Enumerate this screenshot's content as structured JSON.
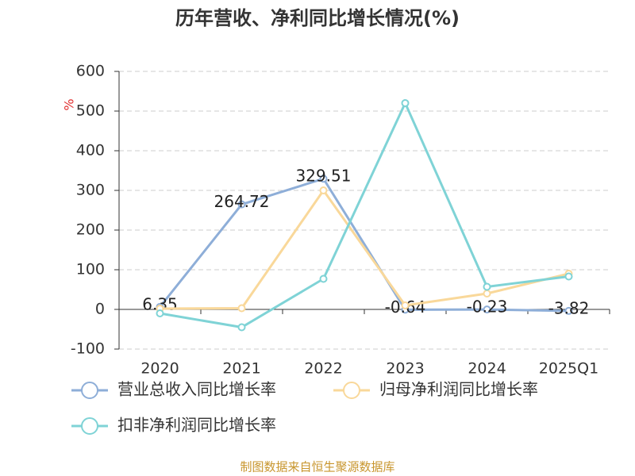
{
  "chart_data": {
    "type": "line",
    "title": "历年营收、净利同比增长情况(%)",
    "y_label": "%",
    "categories": [
      "2020",
      "2021",
      "2022",
      "2023",
      "2024",
      "2025Q1"
    ],
    "series": [
      {
        "name": "营业总收入同比增长率",
        "color": "#8eaed8",
        "values": [
          6.35,
          264.72,
          329.51,
          -0.64,
          -0.23,
          -3.82
        ],
        "show_labels": true
      },
      {
        "name": "归母净利润同比增长率",
        "color": "#f9d89a",
        "values": [
          2,
          3,
          300,
          10,
          40,
          90
        ],
        "show_labels": false
      },
      {
        "name": "扣非净利润同比增长率",
        "color": "#7fd3d6",
        "values": [
          -10,
          -45,
          77,
          520,
          57,
          83
        ],
        "show_labels": false
      }
    ],
    "ylim": [
      -100,
      600
    ],
    "yticks": [
      -100,
      0,
      100,
      200,
      300,
      400,
      500,
      600
    ],
    "grid": true,
    "source": "制图数据来自恒生聚源数据库"
  }
}
